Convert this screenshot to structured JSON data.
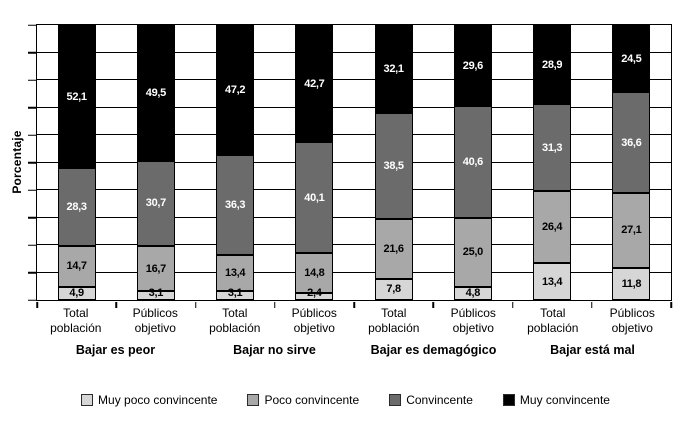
{
  "chart_data": {
    "type": "bar",
    "stacked": true,
    "percent_stacked": true,
    "title": "",
    "xlabel": "",
    "ylabel": "Porcentaje",
    "ylim": [
      0,
      100
    ],
    "gridline_step": 10,
    "grid": true,
    "legend_position": "bottom",
    "decimal_separator": ",",
    "categories": [
      "Total población",
      "Públicos objetivo",
      "Total población",
      "Públicos objetivo",
      "Total población",
      "Públicos objetivo",
      "Total población",
      "Públicos objetivo"
    ],
    "group_labels": [
      "Bajar es peor",
      "Bajar no sirve",
      "Bajar es demagógico",
      "Bajar está mal"
    ],
    "series": [
      {
        "name": "Muy poco convincente",
        "color": "#d6d6d6",
        "label_color": "#000000",
        "values": [
          4.9,
          3.1,
          3.1,
          2.4,
          7.8,
          4.8,
          13.4,
          11.8
        ]
      },
      {
        "name": "Poco convincente",
        "color": "#a8a8a8",
        "label_color": "#000000",
        "values": [
          14.7,
          16.7,
          13.4,
          14.8,
          21.6,
          25.0,
          26.4,
          27.1
        ]
      },
      {
        "name": "Convincente",
        "color": "#6b6b6b",
        "label_color": "#ffffff",
        "values": [
          28.3,
          30.7,
          36.3,
          40.1,
          38.5,
          40.6,
          31.3,
          36.6
        ]
      },
      {
        "name": "Muy convincente",
        "color": "#000000",
        "label_color": "#ffffff",
        "values": [
          52.1,
          49.5,
          47.2,
          42.7,
          32.1,
          29.6,
          28.9,
          24.5
        ]
      }
    ]
  }
}
